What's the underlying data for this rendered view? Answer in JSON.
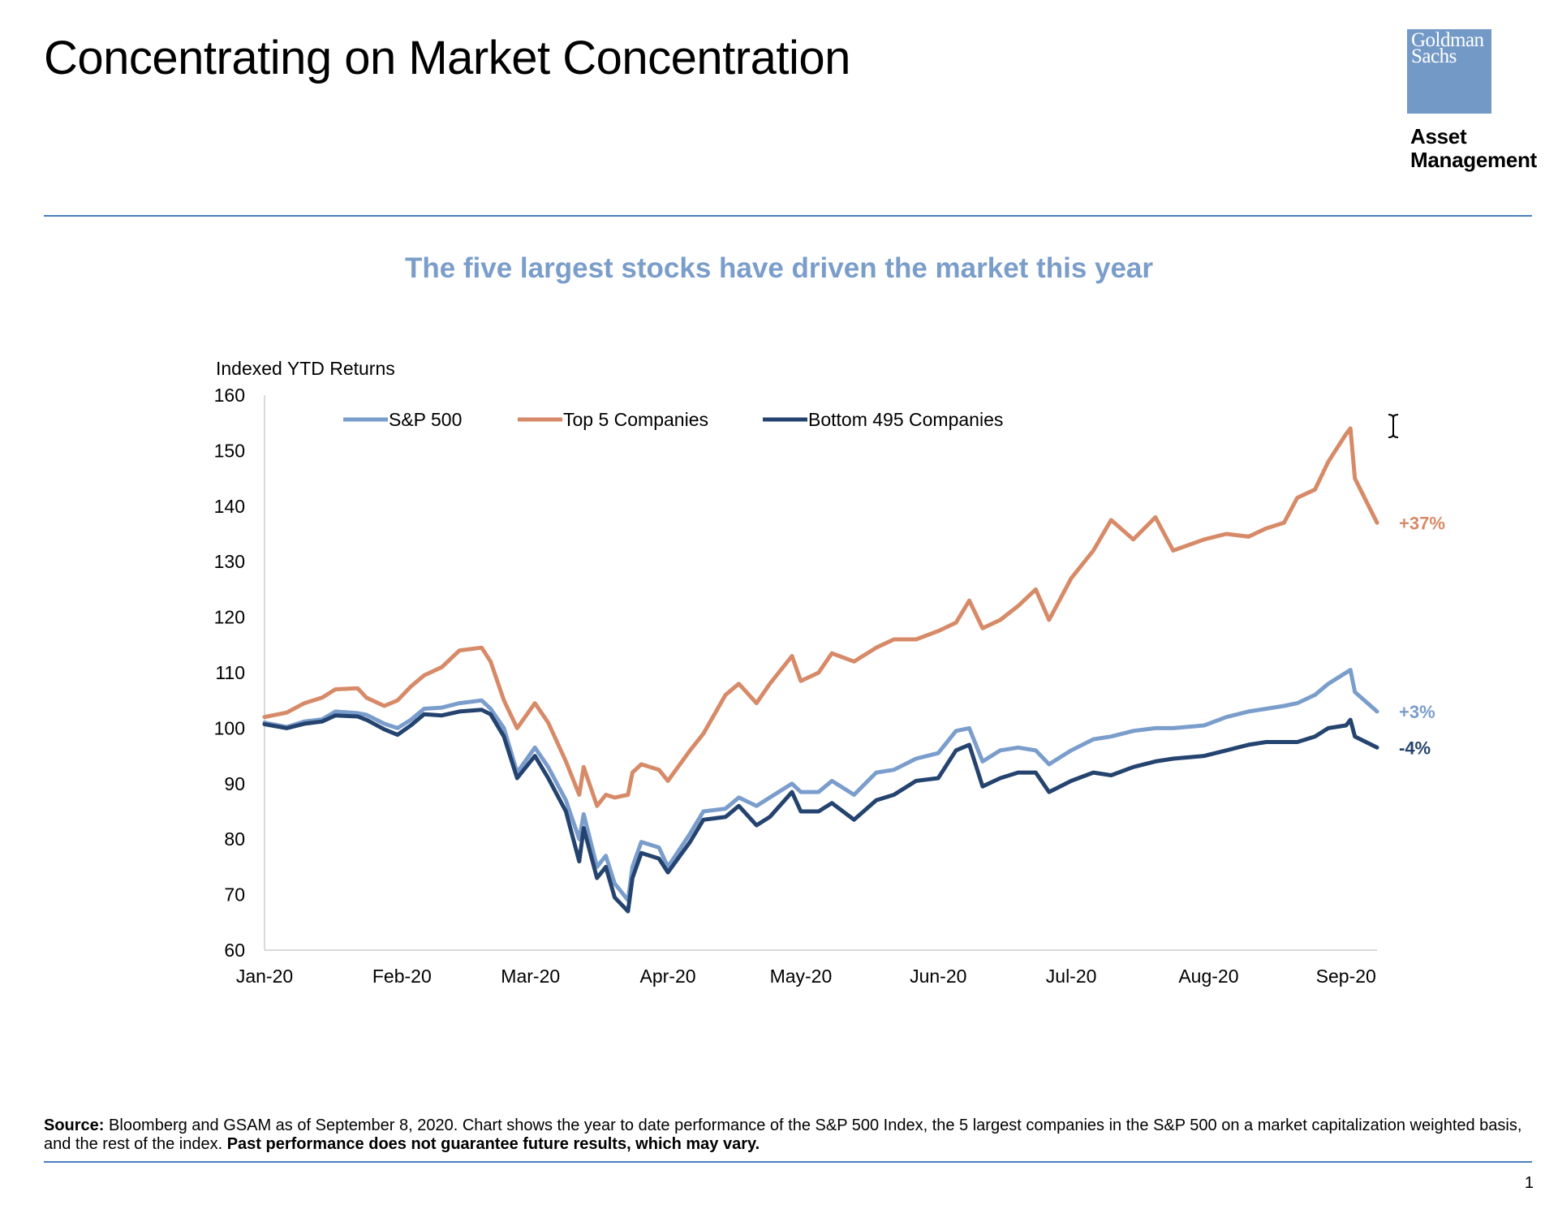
{
  "page": {
    "title": "Concentrating on Market Concentration",
    "logo_line1": "Goldman",
    "logo_line2": "Sachs",
    "logo_sub1": "Asset",
    "logo_sub2": "Management",
    "source_label": "Source:",
    "source_body": "Bloomberg and GSAM as of September 8, 2020. Chart shows the year to date performance of the S&P 500 Index, the 5 largest companies in the S&P 500 on a market capitalization weighted basis, and the rest of the index.",
    "source_disclaimer": "Past performance does not guarantee future results, which may vary.",
    "page_number": "1",
    "accent_color": "#4a7fbd",
    "logo_color": "#7399c6",
    "cursor_icon": "text-cursor-icon"
  },
  "chart_data": {
    "type": "line",
    "title": "The five largest stocks have driven the market this year",
    "ylabel": "Indexed YTD Returns",
    "ylim": [
      60,
      160
    ],
    "yticks": [
      60,
      70,
      80,
      90,
      100,
      110,
      120,
      130,
      140,
      150,
      160
    ],
    "xlim": [
      "2020-01-01",
      "2020-09-08"
    ],
    "xticks": [
      {
        "label": "Jan-20",
        "date": "2020-01-01"
      },
      {
        "label": "Feb-20",
        "date": "2020-02-01"
      },
      {
        "label": "Mar-20",
        "date": "2020-03-01"
      },
      {
        "label": "Apr-20",
        "date": "2020-04-01"
      },
      {
        "label": "May-20",
        "date": "2020-05-01"
      },
      {
        "label": "Jun-20",
        "date": "2020-06-01"
      },
      {
        "label": "Jul-20",
        "date": "2020-07-01"
      },
      {
        "label": "Aug-20",
        "date": "2020-08-01"
      },
      {
        "label": "Sep-20",
        "date": "2020-09-01"
      }
    ],
    "grid": false,
    "legend_position": "top",
    "series": [
      {
        "name": "S&P 500",
        "color": "#7a9dcc",
        "end_label": "+3%",
        "points": [
          [
            "2020-01-01",
            101.0
          ],
          [
            "2020-01-06",
            100.2
          ],
          [
            "2020-01-10",
            101.2
          ],
          [
            "2020-01-14",
            101.6
          ],
          [
            "2020-01-17",
            103.0
          ],
          [
            "2020-01-22",
            102.7
          ],
          [
            "2020-01-24",
            102.4
          ],
          [
            "2020-01-28",
            100.8
          ],
          [
            "2020-01-31",
            100.0
          ],
          [
            "2020-02-03",
            101.5
          ],
          [
            "2020-02-06",
            103.5
          ],
          [
            "2020-02-10",
            103.7
          ],
          [
            "2020-02-14",
            104.5
          ],
          [
            "2020-02-19",
            105.0
          ],
          [
            "2020-02-21",
            103.5
          ],
          [
            "2020-02-24",
            100.0
          ],
          [
            "2020-02-27",
            92.0
          ],
          [
            "2020-03-02",
            96.5
          ],
          [
            "2020-03-05",
            93.0
          ],
          [
            "2020-03-09",
            87.0
          ],
          [
            "2020-03-12",
            80.0
          ],
          [
            "2020-03-13",
            84.5
          ],
          [
            "2020-03-16",
            75.0
          ],
          [
            "2020-03-18",
            77.0
          ],
          [
            "2020-03-20",
            72.0
          ],
          [
            "2020-03-23",
            69.0
          ],
          [
            "2020-03-24",
            75.0
          ],
          [
            "2020-03-26",
            79.5
          ],
          [
            "2020-03-30",
            78.5
          ],
          [
            "2020-04-01",
            75.0
          ],
          [
            "2020-04-06",
            81.0
          ],
          [
            "2020-04-09",
            85.0
          ],
          [
            "2020-04-14",
            85.5
          ],
          [
            "2020-04-17",
            87.5
          ],
          [
            "2020-04-21",
            86.0
          ],
          [
            "2020-04-24",
            87.5
          ],
          [
            "2020-04-29",
            90.0
          ],
          [
            "2020-05-01",
            88.5
          ],
          [
            "2020-05-05",
            88.5
          ],
          [
            "2020-05-08",
            90.5
          ],
          [
            "2020-05-13",
            88.0
          ],
          [
            "2020-05-18",
            92.0
          ],
          [
            "2020-05-22",
            92.5
          ],
          [
            "2020-05-27",
            94.5
          ],
          [
            "2020-06-01",
            95.5
          ],
          [
            "2020-06-05",
            99.5
          ],
          [
            "2020-06-08",
            100.0
          ],
          [
            "2020-06-11",
            94.0
          ],
          [
            "2020-06-15",
            96.0
          ],
          [
            "2020-06-19",
            96.5
          ],
          [
            "2020-06-23",
            96.0
          ],
          [
            "2020-06-26",
            93.5
          ],
          [
            "2020-07-01",
            96.0
          ],
          [
            "2020-07-06",
            98.0
          ],
          [
            "2020-07-10",
            98.5
          ],
          [
            "2020-07-15",
            99.5
          ],
          [
            "2020-07-20",
            100.0
          ],
          [
            "2020-07-24",
            100.0
          ],
          [
            "2020-07-31",
            100.5
          ],
          [
            "2020-08-05",
            102.0
          ],
          [
            "2020-08-10",
            103.0
          ],
          [
            "2020-08-14",
            103.5
          ],
          [
            "2020-08-18",
            104.0
          ],
          [
            "2020-08-21",
            104.5
          ],
          [
            "2020-08-25",
            106.0
          ],
          [
            "2020-08-28",
            108.0
          ],
          [
            "2020-09-01",
            110.0
          ],
          [
            "2020-09-02",
            110.5
          ],
          [
            "2020-09-03",
            106.5
          ],
          [
            "2020-09-08",
            103.0
          ]
        ]
      },
      {
        "name": "Top 5 Companies",
        "color": "#d78a68",
        "end_label": "+37%",
        "points": [
          [
            "2020-01-01",
            102.0
          ],
          [
            "2020-01-06",
            102.8
          ],
          [
            "2020-01-10",
            104.5
          ],
          [
            "2020-01-14",
            105.5
          ],
          [
            "2020-01-17",
            107.0
          ],
          [
            "2020-01-22",
            107.2
          ],
          [
            "2020-01-24",
            105.5
          ],
          [
            "2020-01-28",
            104.0
          ],
          [
            "2020-01-31",
            105.0
          ],
          [
            "2020-02-03",
            107.5
          ],
          [
            "2020-02-06",
            109.5
          ],
          [
            "2020-02-10",
            111.0
          ],
          [
            "2020-02-14",
            114.0
          ],
          [
            "2020-02-19",
            114.5
          ],
          [
            "2020-02-21",
            112.0
          ],
          [
            "2020-02-24",
            105.0
          ],
          [
            "2020-02-27",
            100.0
          ],
          [
            "2020-03-02",
            104.5
          ],
          [
            "2020-03-05",
            101.0
          ],
          [
            "2020-03-09",
            94.0
          ],
          [
            "2020-03-12",
            88.0
          ],
          [
            "2020-03-13",
            93.0
          ],
          [
            "2020-03-16",
            86.0
          ],
          [
            "2020-03-18",
            88.0
          ],
          [
            "2020-03-20",
            87.5
          ],
          [
            "2020-03-23",
            88.0
          ],
          [
            "2020-03-24",
            92.0
          ],
          [
            "2020-03-26",
            93.5
          ],
          [
            "2020-03-30",
            92.5
          ],
          [
            "2020-04-01",
            90.5
          ],
          [
            "2020-04-06",
            96.0
          ],
          [
            "2020-04-09",
            99.0
          ],
          [
            "2020-04-14",
            106.0
          ],
          [
            "2020-04-17",
            108.0
          ],
          [
            "2020-04-21",
            104.5
          ],
          [
            "2020-04-24",
            108.0
          ],
          [
            "2020-04-29",
            113.0
          ],
          [
            "2020-05-01",
            108.5
          ],
          [
            "2020-05-05",
            110.0
          ],
          [
            "2020-05-08",
            113.5
          ],
          [
            "2020-05-13",
            112.0
          ],
          [
            "2020-05-18",
            114.5
          ],
          [
            "2020-05-22",
            116.0
          ],
          [
            "2020-05-27",
            116.0
          ],
          [
            "2020-06-01",
            117.5
          ],
          [
            "2020-06-05",
            119.0
          ],
          [
            "2020-06-08",
            123.0
          ],
          [
            "2020-06-11",
            118.0
          ],
          [
            "2020-06-15",
            119.5
          ],
          [
            "2020-06-19",
            122.0
          ],
          [
            "2020-06-23",
            125.0
          ],
          [
            "2020-06-26",
            119.5
          ],
          [
            "2020-07-01",
            127.0
          ],
          [
            "2020-07-06",
            132.0
          ],
          [
            "2020-07-10",
            137.5
          ],
          [
            "2020-07-15",
            134.0
          ],
          [
            "2020-07-20",
            138.0
          ],
          [
            "2020-07-24",
            132.0
          ],
          [
            "2020-07-31",
            134.0
          ],
          [
            "2020-08-05",
            135.0
          ],
          [
            "2020-08-10",
            134.5
          ],
          [
            "2020-08-14",
            136.0
          ],
          [
            "2020-08-18",
            137.0
          ],
          [
            "2020-08-21",
            141.5
          ],
          [
            "2020-08-25",
            143.0
          ],
          [
            "2020-08-28",
            148.0
          ],
          [
            "2020-09-01",
            153.0
          ],
          [
            "2020-09-02",
            154.0
          ],
          [
            "2020-09-03",
            145.0
          ],
          [
            "2020-09-08",
            137.0
          ]
        ]
      },
      {
        "name": "Bottom 495 Companies",
        "color": "#24436f",
        "end_label": "-4%",
        "points": [
          [
            "2020-01-01",
            100.7
          ],
          [
            "2020-01-06",
            100.0
          ],
          [
            "2020-01-10",
            100.8
          ],
          [
            "2020-01-14",
            101.2
          ],
          [
            "2020-01-17",
            102.3
          ],
          [
            "2020-01-22",
            102.1
          ],
          [
            "2020-01-24",
            101.5
          ],
          [
            "2020-01-28",
            99.8
          ],
          [
            "2020-01-31",
            98.8
          ],
          [
            "2020-02-03",
            100.5
          ],
          [
            "2020-02-06",
            102.5
          ],
          [
            "2020-02-10",
            102.3
          ],
          [
            "2020-02-14",
            103.0
          ],
          [
            "2020-02-19",
            103.3
          ],
          [
            "2020-02-21",
            102.5
          ],
          [
            "2020-02-24",
            98.5
          ],
          [
            "2020-02-27",
            91.0
          ],
          [
            "2020-03-02",
            95.0
          ],
          [
            "2020-03-05",
            91.0
          ],
          [
            "2020-03-09",
            85.0
          ],
          [
            "2020-03-12",
            76.0
          ],
          [
            "2020-03-13",
            82.0
          ],
          [
            "2020-03-16",
            73.0
          ],
          [
            "2020-03-18",
            75.0
          ],
          [
            "2020-03-20",
            69.5
          ],
          [
            "2020-03-23",
            67.0
          ],
          [
            "2020-03-24",
            73.0
          ],
          [
            "2020-03-26",
            77.5
          ],
          [
            "2020-03-30",
            76.5
          ],
          [
            "2020-04-01",
            74.0
          ],
          [
            "2020-04-06",
            79.5
          ],
          [
            "2020-04-09",
            83.5
          ],
          [
            "2020-04-14",
            84.0
          ],
          [
            "2020-04-17",
            86.0
          ],
          [
            "2020-04-21",
            82.5
          ],
          [
            "2020-04-24",
            84.0
          ],
          [
            "2020-04-29",
            88.5
          ],
          [
            "2020-05-01",
            85.0
          ],
          [
            "2020-05-05",
            85.0
          ],
          [
            "2020-05-08",
            86.5
          ],
          [
            "2020-05-13",
            83.5
          ],
          [
            "2020-05-18",
            87.0
          ],
          [
            "2020-05-22",
            88.0
          ],
          [
            "2020-05-27",
            90.5
          ],
          [
            "2020-06-01",
            91.0
          ],
          [
            "2020-06-05",
            96.0
          ],
          [
            "2020-06-08",
            97.0
          ],
          [
            "2020-06-11",
            89.5
          ],
          [
            "2020-06-15",
            91.0
          ],
          [
            "2020-06-19",
            92.0
          ],
          [
            "2020-06-23",
            92.0
          ],
          [
            "2020-06-26",
            88.5
          ],
          [
            "2020-07-01",
            90.5
          ],
          [
            "2020-07-06",
            92.0
          ],
          [
            "2020-07-10",
            91.5
          ],
          [
            "2020-07-15",
            93.0
          ],
          [
            "2020-07-20",
            94.0
          ],
          [
            "2020-07-24",
            94.5
          ],
          [
            "2020-07-31",
            95.0
          ],
          [
            "2020-08-05",
            96.0
          ],
          [
            "2020-08-10",
            97.0
          ],
          [
            "2020-08-14",
            97.5
          ],
          [
            "2020-08-18",
            97.5
          ],
          [
            "2020-08-21",
            97.5
          ],
          [
            "2020-08-25",
            98.5
          ],
          [
            "2020-08-28",
            100.0
          ],
          [
            "2020-09-01",
            100.5
          ],
          [
            "2020-09-02",
            101.5
          ],
          [
            "2020-09-03",
            98.5
          ],
          [
            "2020-09-08",
            96.5
          ]
        ]
      }
    ]
  }
}
